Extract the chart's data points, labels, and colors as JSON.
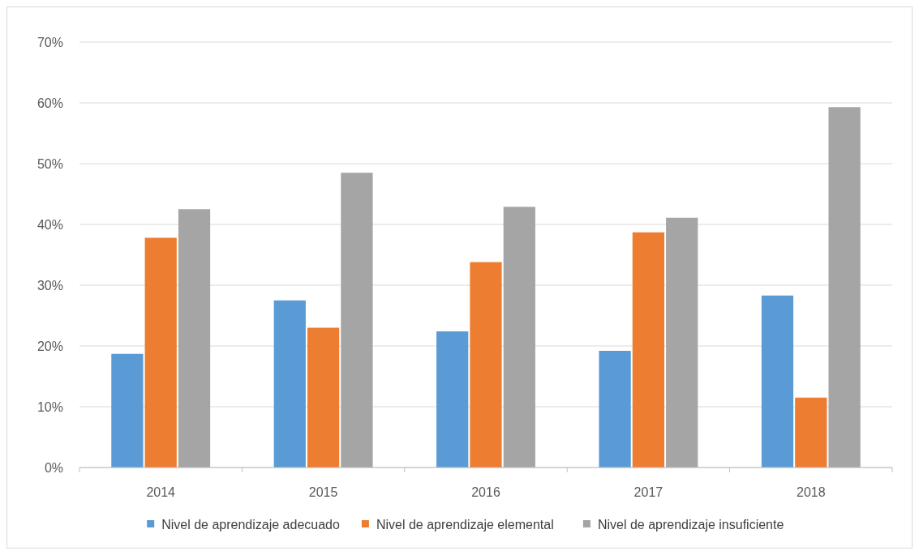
{
  "chart_data": {
    "type": "bar",
    "categories": [
      "2014",
      "2015",
      "2016",
      "2017",
      "2018"
    ],
    "series": [
      {
        "name": "Nivel de aprendizaje adecuado",
        "color": "#5b9bd5",
        "values": [
          18.7,
          27.5,
          22.4,
          19.2,
          28.3
        ]
      },
      {
        "name": "Nivel de aprendizaje elemental",
        "color": "#ed7d31",
        "values": [
          37.8,
          23.0,
          33.8,
          38.7,
          11.5
        ]
      },
      {
        "name": "Nivel de aprendizaje insuficiente",
        "color": "#a5a5a5",
        "values": [
          42.5,
          48.5,
          42.9,
          41.1,
          59.3
        ]
      }
    ],
    "ylim": [
      0,
      70
    ],
    "yticks": [
      {
        "value": 0,
        "label": "0%"
      },
      {
        "value": 10,
        "label": "10%"
      },
      {
        "value": 20,
        "label": "20%"
      },
      {
        "value": 30,
        "label": "30%"
      },
      {
        "value": 40,
        "label": "40%"
      },
      {
        "value": 50,
        "label": "50%"
      },
      {
        "value": 60,
        "label": "60%"
      },
      {
        "value": 70,
        "label": "70%"
      }
    ],
    "grid": "y",
    "legend": "bottom"
  }
}
